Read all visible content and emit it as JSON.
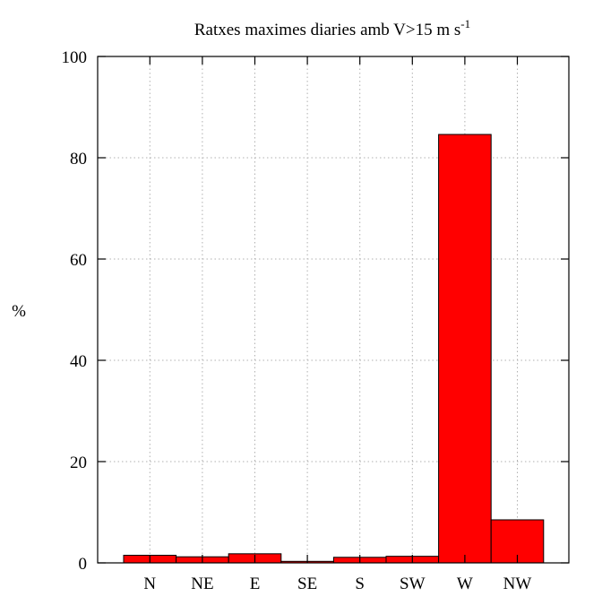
{
  "chart_data": {
    "type": "bar",
    "title": "Ratxes maximes diaries amb V>15 m s",
    "title_superscript": "-1",
    "xlabel": "",
    "ylabel": "%",
    "categories": [
      "N",
      "NE",
      "E",
      "SE",
      "S",
      "SW",
      "W",
      "NW"
    ],
    "values": [
      1.5,
      1.2,
      1.8,
      0.3,
      1.1,
      1.3,
      84.6,
      8.5
    ],
    "ylim": [
      0,
      100
    ],
    "yticks": [
      0,
      20,
      40,
      60,
      80,
      100
    ],
    "grid": true,
    "legend": "none",
    "colors": {
      "bar_fill": "#ff0000",
      "bar_stroke": "#000000",
      "grid": "#b0b0b0",
      "frame": "#000000"
    }
  }
}
